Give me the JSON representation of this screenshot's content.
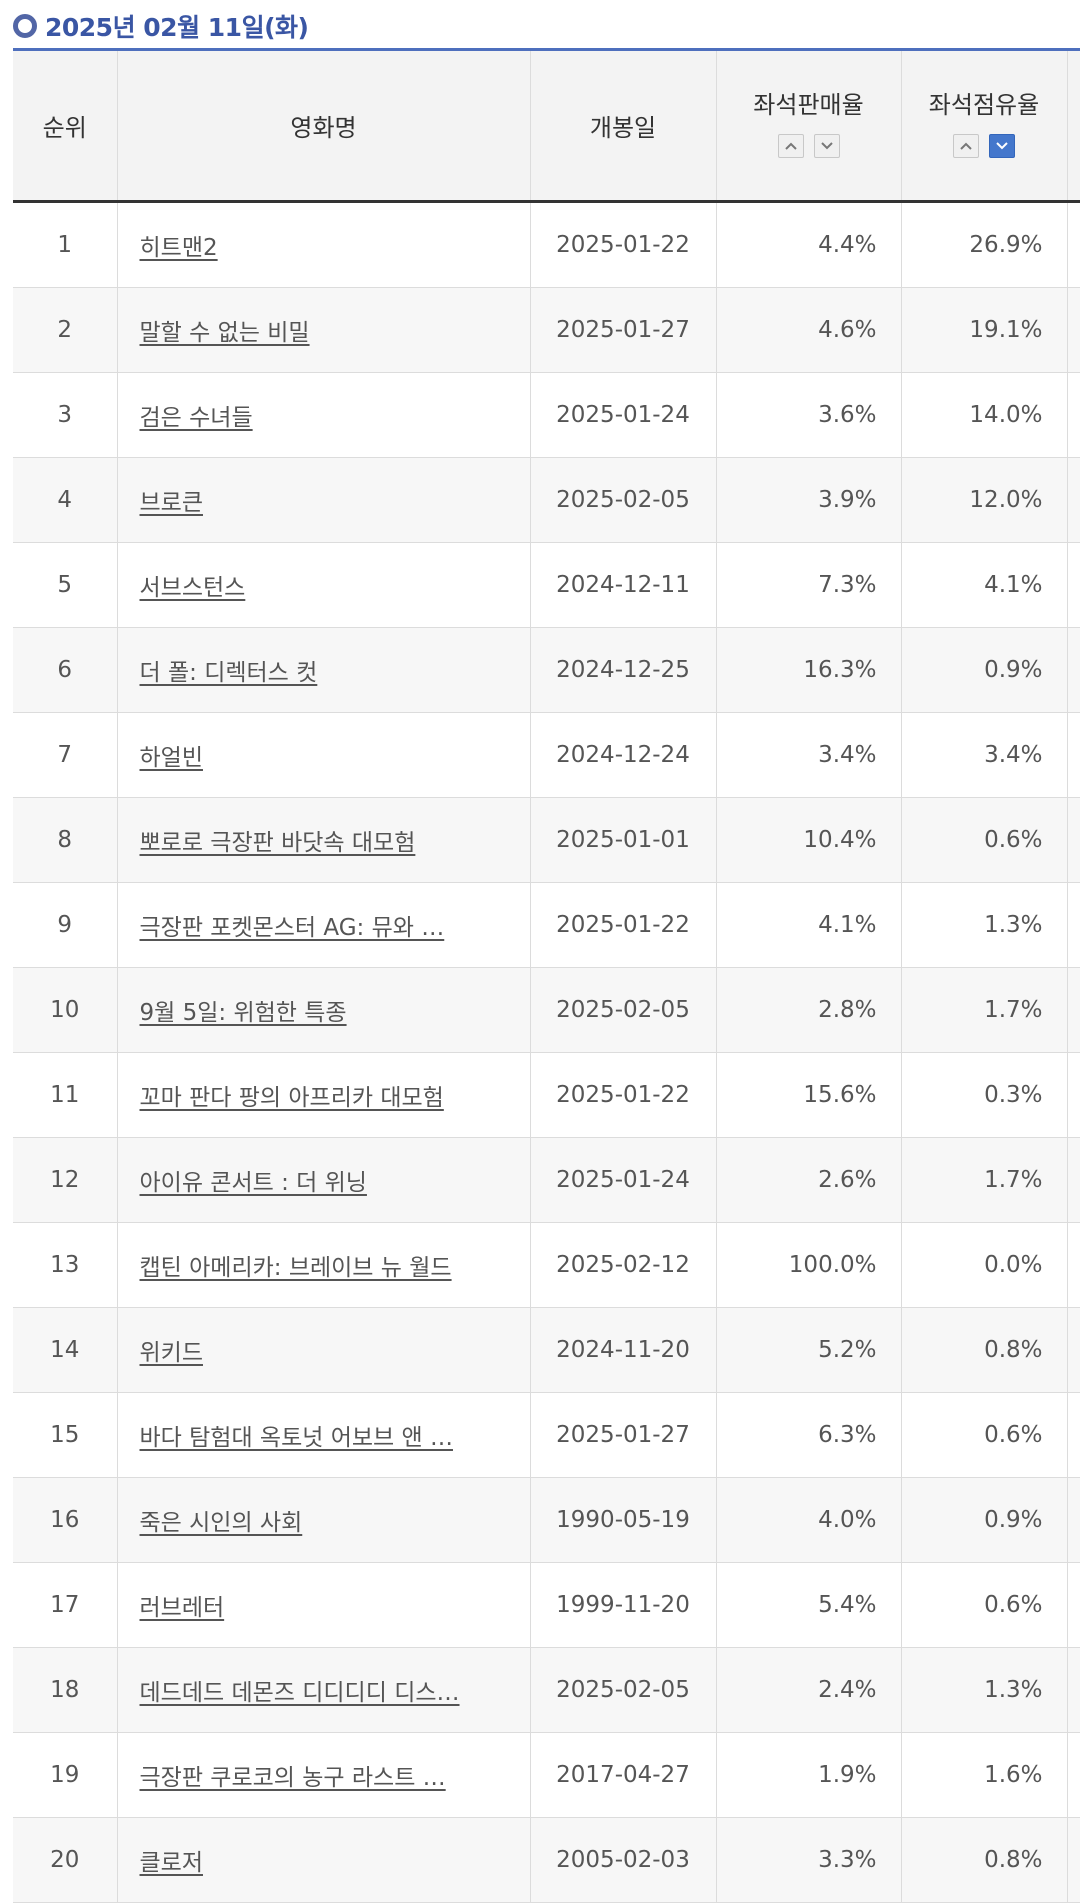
{
  "header": {
    "date": "2025년 02월 11일(화)"
  },
  "columns": {
    "rank": "순위",
    "title": "영화명",
    "release": "개봉일",
    "seat_sales": "좌석판매율",
    "seat_share": "좌석점유율"
  },
  "icons": {
    "sort_up": "chevron-up-icon",
    "sort_down": "chevron-down-icon",
    "bullet": "circle-icon"
  },
  "colors": {
    "accent": "#3a56a4",
    "active_sort": "#4477cc"
  },
  "rows": [
    {
      "rank": "1",
      "title": "히트맨2",
      "release": "2025-01-22",
      "seat_sales": "4.4%",
      "seat_share": "26.9%"
    },
    {
      "rank": "2",
      "title": "말할 수 없는 비밀",
      "release": "2025-01-27",
      "seat_sales": "4.6%",
      "seat_share": "19.1%"
    },
    {
      "rank": "3",
      "title": "검은 수녀들",
      "release": "2025-01-24",
      "seat_sales": "3.6%",
      "seat_share": "14.0%"
    },
    {
      "rank": "4",
      "title": "브로큰",
      "release": "2025-02-05",
      "seat_sales": "3.9%",
      "seat_share": "12.0%"
    },
    {
      "rank": "5",
      "title": "서브스턴스",
      "release": "2024-12-11",
      "seat_sales": "7.3%",
      "seat_share": "4.1%"
    },
    {
      "rank": "6",
      "title": "더 폴: 디렉터스 컷",
      "release": "2024-12-25",
      "seat_sales": "16.3%",
      "seat_share": "0.9%"
    },
    {
      "rank": "7",
      "title": "하얼빈",
      "release": "2024-12-24",
      "seat_sales": "3.4%",
      "seat_share": "3.4%"
    },
    {
      "rank": "8",
      "title": "뽀로로 극장판 바닷속 대모험",
      "release": "2025-01-01",
      "seat_sales": "10.4%",
      "seat_share": "0.6%"
    },
    {
      "rank": "9",
      "title": "극장판 포켓몬스터 AG: 뮤와 …",
      "release": "2025-01-22",
      "seat_sales": "4.1%",
      "seat_share": "1.3%"
    },
    {
      "rank": "10",
      "title": "9월 5일: 위험한 특종",
      "release": "2025-02-05",
      "seat_sales": "2.8%",
      "seat_share": "1.7%"
    },
    {
      "rank": "11",
      "title": "꼬마 판다 팡의 아프리카 대모험",
      "release": "2025-01-22",
      "seat_sales": "15.6%",
      "seat_share": "0.3%"
    },
    {
      "rank": "12",
      "title": "아이유 콘서트 : 더 위닝",
      "release": "2025-01-24",
      "seat_sales": "2.6%",
      "seat_share": "1.7%"
    },
    {
      "rank": "13",
      "title": "캡틴 아메리카: 브레이브 뉴 월드",
      "release": "2025-02-12",
      "seat_sales": "100.0%",
      "seat_share": "0.0%"
    },
    {
      "rank": "14",
      "title": "위키드",
      "release": "2024-11-20",
      "seat_sales": "5.2%",
      "seat_share": "0.8%"
    },
    {
      "rank": "15",
      "title": "바다 탐험대 옥토넛 어보브 앤 …",
      "release": "2025-01-27",
      "seat_sales": "6.3%",
      "seat_share": "0.6%"
    },
    {
      "rank": "16",
      "title": "죽은 시인의 사회",
      "release": "1990-05-19",
      "seat_sales": "4.0%",
      "seat_share": "0.9%"
    },
    {
      "rank": "17",
      "title": "러브레터",
      "release": "1999-11-20",
      "seat_sales": "5.4%",
      "seat_share": "0.6%"
    },
    {
      "rank": "18",
      "title": "데드데드 데몬즈 디디디디 디스…",
      "release": "2025-02-05",
      "seat_sales": "2.4%",
      "seat_share": "1.3%"
    },
    {
      "rank": "19",
      "title": "극장판 쿠로코의 농구 라스트 …",
      "release": "2017-04-27",
      "seat_sales": "1.9%",
      "seat_share": "1.6%"
    },
    {
      "rank": "20",
      "title": "클로저",
      "release": "2005-02-03",
      "seat_sales": "3.3%",
      "seat_share": "0.8%"
    }
  ]
}
